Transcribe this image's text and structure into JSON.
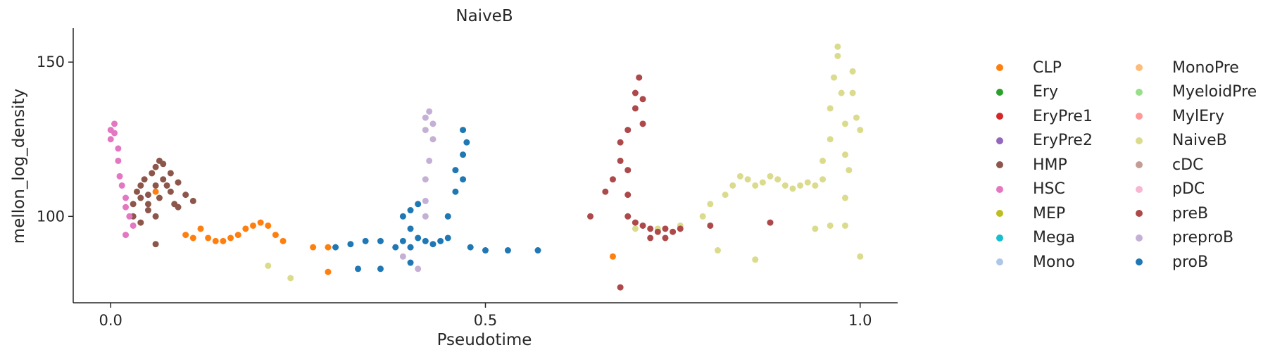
{
  "chart_data": {
    "type": "scatter",
    "title": "NaiveB",
    "xlabel": "Pseudotime",
    "ylabel": "mellon_log_density",
    "xlim": [
      -0.05,
      1.05
    ],
    "ylim": [
      72,
      161
    ],
    "xticks": [
      0.0,
      0.5,
      1.0
    ],
    "xtick_labels": [
      "0.0",
      "0.5",
      "1.0"
    ],
    "yticks": [
      100,
      150
    ],
    "ytick_labels": [
      "100",
      "150"
    ],
    "grid": false,
    "legend_position": "right",
    "series": [
      {
        "name": "CLP",
        "color": "#ff7f0e",
        "points": [
          [
            0.1,
            94
          ],
          [
            0.11,
            93
          ],
          [
            0.12,
            96
          ],
          [
            0.13,
            93
          ],
          [
            0.14,
            92
          ],
          [
            0.15,
            92
          ],
          [
            0.16,
            93
          ],
          [
            0.17,
            94
          ],
          [
            0.18,
            96
          ],
          [
            0.19,
            97
          ],
          [
            0.2,
            98
          ],
          [
            0.21,
            97
          ],
          [
            0.22,
            94
          ],
          [
            0.23,
            92
          ],
          [
            0.27,
            90
          ],
          [
            0.29,
            90
          ],
          [
            0.29,
            82
          ],
          [
            0.06,
            108
          ],
          [
            0.67,
            87
          ]
        ]
      },
      {
        "name": "Ery",
        "color": "#2ca02c",
        "points": []
      },
      {
        "name": "EryPre1",
        "color": "#d62728",
        "points": []
      },
      {
        "name": "EryPre2",
        "color": "#9467bd",
        "points": []
      },
      {
        "name": "HMP",
        "color": "#8c564b",
        "points": [
          [
            0.03,
            104
          ],
          [
            0.035,
            108
          ],
          [
            0.04,
            106
          ],
          [
            0.04,
            110
          ],
          [
            0.045,
            112
          ],
          [
            0.05,
            107
          ],
          [
            0.05,
            104
          ],
          [
            0.055,
            114
          ],
          [
            0.06,
            116
          ],
          [
            0.06,
            110
          ],
          [
            0.065,
            118
          ],
          [
            0.065,
            106
          ],
          [
            0.07,
            112
          ],
          [
            0.07,
            117
          ],
          [
            0.075,
            110
          ],
          [
            0.08,
            108
          ],
          [
            0.08,
            114
          ],
          [
            0.085,
            104
          ],
          [
            0.09,
            111
          ],
          [
            0.03,
            100
          ],
          [
            0.04,
            98
          ],
          [
            0.05,
            102
          ],
          [
            0.06,
            100
          ],
          [
            0.09,
            103
          ],
          [
            0.1,
            107
          ],
          [
            0.11,
            105
          ],
          [
            0.06,
            91
          ]
        ]
      },
      {
        "name": "HSC",
        "color": "#e377c2",
        "points": [
          [
            0.0,
            125
          ],
          [
            0.0,
            128
          ],
          [
            0.005,
            130
          ],
          [
            0.005,
            127
          ],
          [
            0.01,
            122
          ],
          [
            0.01,
            118
          ],
          [
            0.012,
            113
          ],
          [
            0.015,
            110
          ],
          [
            0.02,
            106
          ],
          [
            0.02,
            103
          ],
          [
            0.025,
            100
          ],
          [
            0.03,
            97
          ],
          [
            0.02,
            94
          ]
        ]
      },
      {
        "name": "MEP",
        "color": "#bcbd22",
        "points": []
      },
      {
        "name": "Mega",
        "color": "#17becf",
        "points": []
      },
      {
        "name": "Mono",
        "color": "#aec7e8",
        "points": []
      },
      {
        "name": "MonoPre",
        "color": "#ffbb78",
        "points": []
      },
      {
        "name": "MyeloidPre",
        "color": "#98df8a",
        "points": []
      },
      {
        "name": "MylEry",
        "color": "#ff9896",
        "points": []
      },
      {
        "name": "NaiveB",
        "color": "#dbdb8d",
        "points": [
          [
            0.21,
            84
          ],
          [
            0.24,
            80
          ],
          [
            0.7,
            96
          ],
          [
            0.73,
            96
          ],
          [
            0.76,
            97
          ],
          [
            0.79,
            100
          ],
          [
            0.8,
            104
          ],
          [
            0.82,
            107
          ],
          [
            0.83,
            110
          ],
          [
            0.84,
            113
          ],
          [
            0.85,
            112
          ],
          [
            0.86,
            110
          ],
          [
            0.87,
            111
          ],
          [
            0.88,
            113
          ],
          [
            0.89,
            112
          ],
          [
            0.9,
            110
          ],
          [
            0.91,
            109
          ],
          [
            0.92,
            110
          ],
          [
            0.93,
            111
          ],
          [
            0.94,
            110
          ],
          [
            0.95,
            112
          ],
          [
            0.95,
            118
          ],
          [
            0.96,
            125
          ],
          [
            0.96,
            135
          ],
          [
            0.965,
            145
          ],
          [
            0.97,
            152
          ],
          [
            0.97,
            155
          ],
          [
            0.975,
            140
          ],
          [
            0.98,
            130
          ],
          [
            0.98,
            120
          ],
          [
            0.98,
            106
          ],
          [
            0.98,
            97
          ],
          [
            0.985,
            115
          ],
          [
            0.99,
            147
          ],
          [
            0.99,
            140
          ],
          [
            0.995,
            132
          ],
          [
            1.0,
            128
          ],
          [
            1.0,
            87
          ],
          [
            0.94,
            96
          ],
          [
            0.96,
            97
          ],
          [
            0.81,
            89
          ],
          [
            0.86,
            86
          ]
        ]
      },
      {
        "name": "cDC",
        "color": "#c49c94",
        "points": []
      },
      {
        "name": "pDC",
        "color": "#f7b6d2",
        "points": []
      },
      {
        "name": "preB",
        "color": "#ad494a",
        "points": [
          [
            0.64,
            100
          ],
          [
            0.66,
            108
          ],
          [
            0.67,
            112
          ],
          [
            0.68,
            118
          ],
          [
            0.68,
            124
          ],
          [
            0.69,
            115
          ],
          [
            0.69,
            128
          ],
          [
            0.7,
            135
          ],
          [
            0.7,
            140
          ],
          [
            0.705,
            145
          ],
          [
            0.71,
            138
          ],
          [
            0.71,
            130
          ],
          [
            0.69,
            107
          ],
          [
            0.69,
            100
          ],
          [
            0.7,
            98
          ],
          [
            0.71,
            97
          ],
          [
            0.72,
            96
          ],
          [
            0.73,
            95
          ],
          [
            0.74,
            96
          ],
          [
            0.75,
            95
          ],
          [
            0.76,
            96
          ],
          [
            0.8,
            97
          ],
          [
            0.88,
            98
          ],
          [
            0.68,
            77
          ],
          [
            0.72,
            93
          ],
          [
            0.74,
            93
          ]
        ]
      },
      {
        "name": "preproB",
        "color": "#c5b0d5",
        "points": [
          [
            0.42,
            132
          ],
          [
            0.42,
            128
          ],
          [
            0.425,
            134
          ],
          [
            0.43,
            130
          ],
          [
            0.43,
            125
          ],
          [
            0.425,
            118
          ],
          [
            0.42,
            112
          ],
          [
            0.42,
            105
          ],
          [
            0.42,
            100
          ],
          [
            0.4,
            90
          ],
          [
            0.39,
            87
          ],
          [
            0.41,
            83
          ]
        ]
      },
      {
        "name": "proB",
        "color": "#1f77b4",
        "points": [
          [
            0.3,
            90
          ],
          [
            0.32,
            91
          ],
          [
            0.34,
            92
          ],
          [
            0.36,
            92
          ],
          [
            0.33,
            83
          ],
          [
            0.36,
            83
          ],
          [
            0.38,
            90
          ],
          [
            0.39,
            92
          ],
          [
            0.39,
            100
          ],
          [
            0.4,
            102
          ],
          [
            0.4,
            96
          ],
          [
            0.4,
            90
          ],
          [
            0.41,
            104
          ],
          [
            0.41,
            93
          ],
          [
            0.42,
            92
          ],
          [
            0.43,
            91
          ],
          [
            0.44,
            92
          ],
          [
            0.45,
            93
          ],
          [
            0.45,
            100
          ],
          [
            0.46,
            108
          ],
          [
            0.46,
            115
          ],
          [
            0.47,
            120
          ],
          [
            0.47,
            128
          ],
          [
            0.475,
            124
          ],
          [
            0.47,
            112
          ],
          [
            0.48,
            90
          ],
          [
            0.5,
            89
          ],
          [
            0.53,
            89
          ],
          [
            0.57,
            89
          ],
          [
            0.4,
            85
          ]
        ]
      }
    ]
  }
}
